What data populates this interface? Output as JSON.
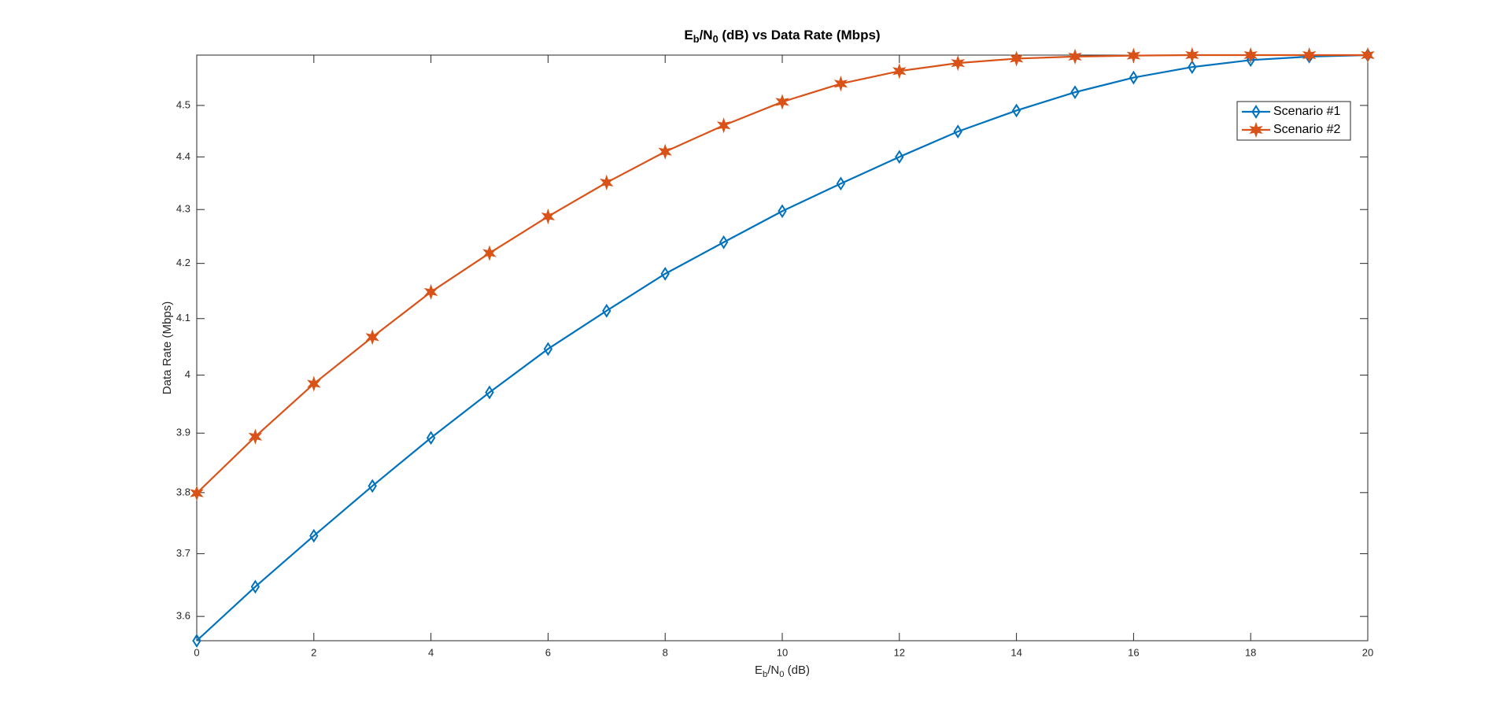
{
  "chart_data": {
    "type": "line",
    "title": [
      "E",
      "b",
      "/N",
      "0",
      " (dB) vs Data Rate (Mbps)"
    ],
    "x_label": [
      "E",
      "b",
      "/N",
      "0",
      " (dB)"
    ],
    "y_label": "Data Rate (Mbps)",
    "x": [
      0,
      1,
      2,
      3,
      4,
      5,
      6,
      7,
      8,
      9,
      10,
      11,
      12,
      13,
      14,
      15,
      16,
      17,
      18,
      19,
      20
    ],
    "series": [
      {
        "name": "Scenario #1",
        "color": "#0072BD",
        "marker": "diamond",
        "values": [
          3.562,
          3.647,
          3.729,
          3.811,
          3.892,
          3.97,
          4.046,
          4.114,
          4.181,
          4.239,
          4.297,
          4.349,
          4.4,
          4.449,
          4.49,
          4.526,
          4.555,
          4.576,
          4.59,
          4.597,
          4.6
        ]
      },
      {
        "name": "Scenario #2",
        "color": "#D95319",
        "marker": "star",
        "values": [
          3.799,
          3.894,
          3.985,
          4.067,
          4.148,
          4.219,
          4.287,
          4.351,
          4.41,
          4.461,
          4.507,
          4.543,
          4.568,
          4.584,
          4.593,
          4.597,
          4.599,
          4.6,
          4.6,
          4.6,
          4.6
        ]
      }
    ],
    "xlim": [
      0,
      20
    ],
    "xticks": [
      0,
      2,
      4,
      6,
      8,
      10,
      12,
      14,
      16,
      18,
      20
    ],
    "ylim": [
      3.562,
      4.6
    ],
    "yticks": [
      3.6,
      3.7,
      3.8,
      3.9,
      4,
      4.1,
      4.2,
      4.3,
      4.4,
      4.5
    ],
    "y_scale": "log",
    "grid": false,
    "legend_position": "upper-right"
  }
}
